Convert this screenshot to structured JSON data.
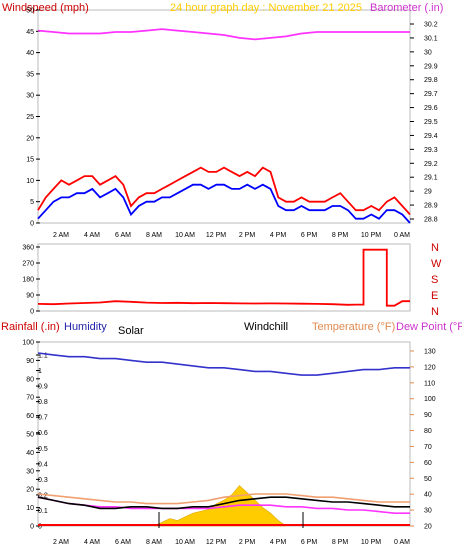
{
  "chart_data": [
    {
      "type": "line",
      "title": "24 hour graph day : November 21 2025",
      "xlabel": "",
      "ylabel": "Windspeed (mph)",
      "y2label": "Barometer (.in)",
      "ylim": [
        0,
        50
      ],
      "yticks": [
        "0",
        "5",
        "10",
        "15",
        "20",
        "25",
        "30",
        "35",
        "40",
        "45",
        "50"
      ],
      "y2lim": [
        28.8,
        30.25
      ],
      "y2ticks": [
        "28.8",
        "28.9",
        "29",
        "29.1",
        "29.2",
        "29.3",
        "29.4",
        "29.5",
        "29.6",
        "29.7",
        "29.8",
        "29.9",
        "30",
        "30.1",
        "30.2"
      ],
      "xticks": [
        "2 AM",
        "4 AM",
        "6 AM",
        "8 AM",
        "10 AM",
        "12 PM",
        "2 PM",
        "4 PM",
        "6 PM",
        "8 PM",
        "10 PM",
        "0 AM"
      ],
      "grid": false,
      "series": [
        {
          "color": "#ff0000",
          "x": [
            0,
            0.5,
            1,
            1.5,
            2,
            2.5,
            3,
            3.5,
            4,
            4.5,
            5,
            5.5,
            6,
            6.5,
            7,
            7.5,
            8,
            8.5,
            9,
            9.5,
            10,
            10.5,
            11,
            11.5,
            12,
            12.5,
            13,
            13.5,
            14,
            14.5,
            15,
            15.5,
            16,
            16.5,
            17,
            17.5,
            18,
            18.5,
            19,
            19.5,
            20,
            20.5,
            21,
            21.5,
            22,
            22.5,
            23,
            23.5,
            24
          ],
          "values": [
            3,
            6,
            8,
            10,
            9,
            10,
            11,
            11,
            9,
            10,
            11,
            9,
            4,
            6,
            7,
            7,
            8,
            9,
            10,
            11,
            12,
            13,
            12,
            12,
            13,
            12,
            11,
            12,
            11,
            13,
            12,
            6,
            5,
            5,
            6,
            5,
            5,
            5,
            6,
            7,
            5,
            3,
            3,
            4,
            3,
            5,
            6,
            4,
            2
          ]
        },
        {
          "color": "#0000ff",
          "x": [
            0,
            0.5,
            1,
            1.5,
            2,
            2.5,
            3,
            3.5,
            4,
            4.5,
            5,
            5.5,
            6,
            6.5,
            7,
            7.5,
            8,
            8.5,
            9,
            9.5,
            10,
            10.5,
            11,
            11.5,
            12,
            12.5,
            13,
            13.5,
            14,
            14.5,
            15,
            15.5,
            16,
            16.5,
            17,
            17.5,
            18,
            18.5,
            19,
            19.5,
            20,
            20.5,
            21,
            21.5,
            22,
            22.5,
            23,
            23.5,
            24
          ],
          "values": [
            1,
            3,
            5,
            6,
            6,
            7,
            7,
            8,
            6,
            7,
            8,
            6,
            2,
            4,
            5,
            5,
            6,
            6,
            7,
            8,
            9,
            9,
            8,
            9,
            9,
            8,
            8,
            9,
            8,
            9,
            8,
            4,
            3,
            3,
            4,
            3,
            3,
            3,
            4,
            4,
            3,
            1,
            1,
            2,
            1,
            3,
            3,
            2,
            0
          ]
        },
        {
          "color": "#ff33ff",
          "axis": "y2",
          "x": [
            0,
            1,
            2,
            3,
            4,
            5,
            6,
            7,
            8,
            9,
            10,
            11,
            12,
            13,
            14,
            15,
            16,
            17,
            18,
            19,
            20,
            21,
            22,
            23,
            24
          ],
          "values": [
            30.11,
            30.1,
            30.09,
            30.09,
            30.09,
            30.1,
            30.1,
            30.11,
            30.12,
            30.11,
            30.1,
            30.09,
            30.08,
            30.06,
            30.05,
            30.06,
            30.07,
            30.09,
            30.1,
            30.1,
            30.1,
            30.1,
            30.1,
            30.1,
            30.1
          ]
        }
      ]
    },
    {
      "type": "line",
      "ylabel": "",
      "ylim": [
        0,
        360
      ],
      "yticks": [
        "0",
        "90",
        "180",
        "270",
        "360"
      ],
      "y2ticks": [
        "N",
        "E",
        "S",
        "W",
        "N"
      ],
      "xticks": [],
      "grid": false,
      "series": [
        {
          "color": "#ff0000",
          "x": [
            0,
            1,
            2,
            3,
            4,
            5,
            6,
            7,
            8,
            9,
            10,
            11,
            12,
            13,
            14,
            15,
            16,
            17,
            18,
            19,
            20,
            20.5,
            21,
            21.5,
            22,
            22.5,
            23,
            23.5,
            24
          ],
          "values": [
            40,
            38,
            42,
            45,
            48,
            55,
            52,
            47,
            45,
            46,
            44,
            45,
            44,
            43,
            42,
            43,
            42,
            41,
            40,
            38,
            35,
            36,
            345,
            345,
            345,
            30,
            30,
            55,
            55
          ]
        }
      ]
    },
    {
      "type": "line",
      "ylabel": "Rainfall (.in)",
      "y2label": "Temperature (°F)",
      "legend": [
        "Humidity",
        "Solar",
        "Windchill",
        "Dew Point (°F)"
      ],
      "ylim": [
        0,
        100
      ],
      "yticks": [
        "0",
        "10",
        "20",
        "30",
        "40",
        "50",
        "60",
        "70",
        "80",
        "90",
        "100"
      ],
      "rainticks": [
        "0",
        "0.1",
        "0.2",
        "0.3",
        "0.4",
        "0.5",
        "0.6",
        "0.7",
        "0.8",
        "0.9",
        "1",
        "1.1"
      ],
      "y2lim": [
        20,
        135
      ],
      "y2ticks": [
        "20",
        "30",
        "40",
        "50",
        "60",
        "70",
        "80",
        "90",
        "100",
        "110",
        "120",
        "130"
      ],
      "xticks": [
        "2 AM",
        "4 AM",
        "6 AM",
        "8 AM",
        "10 AM",
        "12 PM",
        "2 PM",
        "4 PM",
        "6 PM",
        "8 PM",
        "10 PM",
        "0 AM"
      ],
      "grid": false,
      "series": [
        {
          "name": "Humidity",
          "color": "#3333cc",
          "x": [
            0,
            1,
            2,
            3,
            4,
            5,
            6,
            7,
            8,
            9,
            10,
            11,
            12,
            13,
            14,
            15,
            16,
            17,
            18,
            19,
            20,
            21,
            22,
            23,
            24
          ],
          "values": [
            94,
            93,
            92,
            92,
            91,
            91,
            90,
            89,
            89,
            88,
            87,
            86,
            86,
            85,
            84,
            84,
            83,
            82,
            82,
            83,
            84,
            85,
            85,
            86,
            86
          ]
        },
        {
          "name": "Temperature (°F)",
          "axis": "y2",
          "color": "#f0a070",
          "x": [
            0,
            1,
            2,
            3,
            4,
            5,
            6,
            7,
            8,
            9,
            10,
            11,
            12,
            13,
            14,
            15,
            16,
            17,
            18,
            19,
            20,
            21,
            22,
            23,
            24
          ],
          "values": [
            40,
            39,
            38,
            37,
            36,
            35,
            35,
            34,
            34,
            34,
            35,
            36,
            38,
            39,
            40,
            40,
            40,
            39,
            38,
            38,
            37,
            36,
            35,
            35,
            35
          ]
        },
        {
          "name": "Windchill",
          "axis": "y2",
          "color": "#000000",
          "x": [
            0,
            1,
            2,
            3,
            4,
            5,
            6,
            7,
            8,
            9,
            10,
            11,
            12,
            13,
            14,
            15,
            16,
            17,
            18,
            19,
            20,
            21,
            22,
            23,
            24
          ],
          "values": [
            38,
            36,
            34,
            33,
            31,
            31,
            32,
            32,
            31,
            31,
            32,
            32,
            34,
            36,
            37,
            38,
            38,
            37,
            36,
            35,
            35,
            34,
            33,
            32,
            32
          ]
        },
        {
          "name": "Dew Point (°F)",
          "axis": "y2",
          "color": "#ff33ff",
          "x": [
            0,
            1,
            2,
            3,
            4,
            5,
            6,
            7,
            8,
            9,
            10,
            11,
            12,
            13,
            14,
            15,
            16,
            17,
            18,
            19,
            20,
            21,
            22,
            23,
            24
          ],
          "values": [
            38,
            36,
            34,
            33,
            32,
            32,
            31,
            31,
            31,
            31,
            31,
            31,
            32,
            33,
            33,
            33,
            32,
            32,
            31,
            31,
            30,
            30,
            29,
            28,
            28
          ]
        },
        {
          "name": "Solar",
          "type": "area",
          "color": "#ffcc00",
          "x": [
            7.5,
            8,
            8.5,
            9,
            9.5,
            10,
            10.5,
            11,
            11.5,
            12,
            12.5,
            13,
            13.5,
            14,
            14.5,
            15,
            15.5,
            16
          ],
          "values": [
            0,
            2,
            4,
            3,
            5,
            7,
            8,
            9,
            12,
            14,
            17,
            22,
            18,
            14,
            10,
            7,
            3,
            0
          ]
        }
      ]
    }
  ]
}
